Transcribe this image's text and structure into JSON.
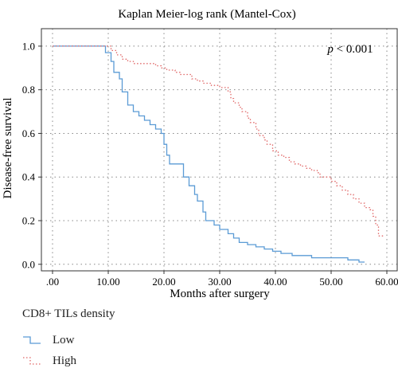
{
  "chart_data": {
    "type": "line",
    "title": "Kaplan Meier-log rank (Mantel-Cox)",
    "xlabel": "Months after surgery",
    "ylabel": "Disease-free survival",
    "xlim": [
      -2,
      62
    ],
    "ylim": [
      -0.03,
      1.08
    ],
    "x_ticks": [
      0,
      10,
      20,
      30,
      40,
      50,
      60
    ],
    "x_tick_labels": [
      ".00",
      "10.00",
      "20.00",
      "30.00",
      "40.00",
      "50.00",
      "60.00"
    ],
    "y_ticks": [
      0,
      0.2,
      0.4,
      0.6,
      0.8,
      1.0
    ],
    "y_tick_labels": [
      "0.0",
      "0.2",
      "0.4",
      "0.6",
      "0.8",
      "1.0"
    ],
    "grid": true,
    "annotation": "p < 0.001",
    "legend_title": "CD8+ TILs density",
    "legend_position": "bottom-left",
    "series": [
      {
        "name": "Low",
        "color": "#5b9bd5",
        "style": "step-solid",
        "points": [
          [
            0,
            1.0
          ],
          [
            9.5,
            1.0
          ],
          [
            9.5,
            0.97
          ],
          [
            10.5,
            0.93
          ],
          [
            11.0,
            0.88
          ],
          [
            12.0,
            0.85
          ],
          [
            12.5,
            0.79
          ],
          [
            13.5,
            0.73
          ],
          [
            14.5,
            0.7
          ],
          [
            15.5,
            0.68
          ],
          [
            16.5,
            0.66
          ],
          [
            17.5,
            0.64
          ],
          [
            18.5,
            0.62
          ],
          [
            19.5,
            0.6
          ],
          [
            20.0,
            0.55
          ],
          [
            20.5,
            0.5
          ],
          [
            21.0,
            0.46
          ],
          [
            23.5,
            0.4
          ],
          [
            24.5,
            0.36
          ],
          [
            25.5,
            0.32
          ],
          [
            26.0,
            0.29
          ],
          [
            27.0,
            0.24
          ],
          [
            27.5,
            0.2
          ],
          [
            29.0,
            0.18
          ],
          [
            30.0,
            0.16
          ],
          [
            31.5,
            0.14
          ],
          [
            32.5,
            0.12
          ],
          [
            33.5,
            0.1
          ],
          [
            35.0,
            0.09
          ],
          [
            36.5,
            0.08
          ],
          [
            38.0,
            0.07
          ],
          [
            39.5,
            0.06
          ],
          [
            41.0,
            0.05
          ],
          [
            43.0,
            0.04
          ],
          [
            46.5,
            0.03
          ],
          [
            53.0,
            0.02
          ],
          [
            55.0,
            0.01
          ],
          [
            56.0,
            0.01
          ]
        ]
      },
      {
        "name": "High",
        "color": "#e06666",
        "style": "step-dotted",
        "points": [
          [
            0,
            1.0
          ],
          [
            9.5,
            1.0
          ],
          [
            10.5,
            0.98
          ],
          [
            11.5,
            0.96
          ],
          [
            12.5,
            0.94
          ],
          [
            13.5,
            0.93
          ],
          [
            14.5,
            0.92
          ],
          [
            18.5,
            0.91
          ],
          [
            19.5,
            0.9
          ],
          [
            20.5,
            0.89
          ],
          [
            22.0,
            0.88
          ],
          [
            23.0,
            0.87
          ],
          [
            25.0,
            0.85
          ],
          [
            26.0,
            0.84
          ],
          [
            27.0,
            0.83
          ],
          [
            28.5,
            0.82
          ],
          [
            30.0,
            0.81
          ],
          [
            31.5,
            0.79
          ],
          [
            32.0,
            0.76
          ],
          [
            32.5,
            0.74
          ],
          [
            33.5,
            0.72
          ],
          [
            34.0,
            0.7
          ],
          [
            35.0,
            0.67
          ],
          [
            35.5,
            0.65
          ],
          [
            36.5,
            0.62
          ],
          [
            37.0,
            0.59
          ],
          [
            38.0,
            0.57
          ],
          [
            38.5,
            0.55
          ],
          [
            39.5,
            0.52
          ],
          [
            40.5,
            0.5
          ],
          [
            41.5,
            0.49
          ],
          [
            42.5,
            0.47
          ],
          [
            43.5,
            0.46
          ],
          [
            44.5,
            0.45
          ],
          [
            45.5,
            0.44
          ],
          [
            46.5,
            0.43
          ],
          [
            47.5,
            0.42
          ],
          [
            48.0,
            0.4
          ],
          [
            50.0,
            0.38
          ],
          [
            51.0,
            0.36
          ],
          [
            52.0,
            0.34
          ],
          [
            53.0,
            0.32
          ],
          [
            54.0,
            0.3
          ],
          [
            55.0,
            0.28
          ],
          [
            56.0,
            0.26
          ],
          [
            57.0,
            0.25
          ],
          [
            57.5,
            0.22
          ],
          [
            58.0,
            0.18
          ],
          [
            58.5,
            0.13
          ],
          [
            59.5,
            0.13
          ]
        ]
      }
    ]
  }
}
